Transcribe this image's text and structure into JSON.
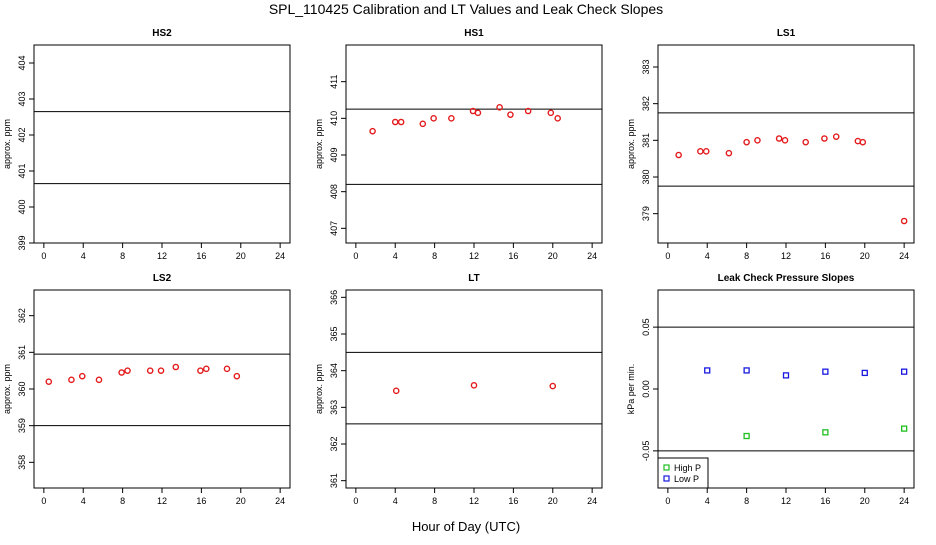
{
  "title": "SPL_110425  Calibration and LT Values and Leak Check Slopes",
  "xlabel": "Hour of Day (UTC)",
  "colors": {
    "red": "#e41a1c",
    "green": "#1fbf1f",
    "blue": "#1818e0",
    "line": "#000000"
  },
  "chart_data": [
    {
      "type": "scatter",
      "title": "HS2",
      "ylabel": "approx. ppm",
      "xlim": [
        -1,
        25
      ],
      "ylim": [
        399.0,
        404.5
      ],
      "xticks": [
        0,
        4,
        8,
        12,
        16,
        20,
        24
      ],
      "yticks": [
        399,
        400,
        401,
        402,
        403,
        404
      ],
      "hlines": [
        400.65,
        402.65
      ],
      "series": [
        {
          "color": "#e41a1c",
          "marker": "circle",
          "x": [],
          "y": []
        }
      ]
    },
    {
      "type": "scatter",
      "title": "HS1",
      "ylabel": "approx. ppm",
      "xlim": [
        -1,
        25
      ],
      "ylim": [
        406.6,
        412.0
      ],
      "xticks": [
        0,
        4,
        8,
        12,
        16,
        20,
        24
      ],
      "yticks": [
        407,
        408,
        409,
        410,
        411
      ],
      "hlines": [
        408.2,
        410.25
      ],
      "series": [
        {
          "color": "#e41a1c",
          "marker": "circle",
          "x": [
            1.7,
            4.0,
            4.6,
            6.8,
            7.9,
            9.7,
            11.9,
            12.4,
            14.6,
            15.7,
            17.5,
            19.8,
            20.5
          ],
          "y": [
            409.65,
            409.9,
            409.9,
            409.85,
            410.0,
            410.0,
            410.2,
            410.15,
            410.3,
            410.1,
            410.2,
            410.15,
            410.0
          ]
        }
      ]
    },
    {
      "type": "scatter",
      "title": "LS1",
      "ylabel": "approx. ppm",
      "xlim": [
        -1,
        25
      ],
      "ylim": [
        378.2,
        383.6
      ],
      "xticks": [
        0,
        4,
        8,
        12,
        16,
        20,
        24
      ],
      "yticks": [
        379,
        380,
        381,
        382,
        383
      ],
      "hlines": [
        379.75,
        381.75
      ],
      "series": [
        {
          "color": "#e41a1c",
          "marker": "circle",
          "x": [
            1.1,
            3.3,
            3.9,
            6.2,
            8.0,
            9.1,
            11.3,
            11.9,
            14.0,
            15.9,
            17.1,
            19.3,
            19.8,
            24.0
          ],
          "y": [
            380.6,
            380.7,
            380.7,
            380.65,
            380.95,
            381.0,
            381.05,
            381.0,
            380.95,
            381.05,
            381.1,
            380.98,
            380.95,
            378.8
          ]
        }
      ]
    },
    {
      "type": "scatter",
      "title": "LS2",
      "ylabel": "approx. ppm",
      "xlim": [
        -1,
        25
      ],
      "ylim": [
        357.3,
        362.7
      ],
      "xticks": [
        0,
        4,
        8,
        12,
        16,
        20,
        24
      ],
      "yticks": [
        358,
        359,
        360,
        361,
        362
      ],
      "hlines": [
        359.0,
        360.95
      ],
      "series": [
        {
          "color": "#e41a1c",
          "marker": "circle",
          "x": [
            0.5,
            2.8,
            3.9,
            5.6,
            7.9,
            8.5,
            10.8,
            11.9,
            13.4,
            15.9,
            16.5,
            18.6,
            19.6
          ],
          "y": [
            360.2,
            360.25,
            360.35,
            360.25,
            360.45,
            360.5,
            360.5,
            360.5,
            360.6,
            360.5,
            360.55,
            360.55,
            360.35
          ]
        }
      ]
    },
    {
      "type": "scatter",
      "title": "LT",
      "ylabel": "approx. ppm",
      "xlim": [
        -1,
        25
      ],
      "ylim": [
        360.8,
        366.2
      ],
      "xticks": [
        0,
        4,
        8,
        12,
        16,
        20,
        24
      ],
      "yticks": [
        361,
        362,
        363,
        364,
        365,
        366
      ],
      "hlines": [
        362.55,
        364.5
      ],
      "series": [
        {
          "color": "#e41a1c",
          "marker": "circle",
          "x": [
            4.1,
            12.0,
            20.0
          ],
          "y": [
            363.45,
            363.6,
            363.58
          ]
        }
      ]
    },
    {
      "type": "scatter",
      "title": "Leak Check Pressure Slopes",
      "ylabel": "kPa per min.",
      "xlim": [
        -1,
        25
      ],
      "ylim": [
        -0.08,
        0.08
      ],
      "xticks": [
        0,
        4,
        8,
        12,
        16,
        20,
        24
      ],
      "yticks": [
        -0.05,
        0.0,
        0.05
      ],
      "yticklabels": [
        "-0.05",
        "0.00",
        "0.05"
      ],
      "hlines": [
        -0.05,
        0.05
      ],
      "legend": {
        "position": "bottom-left",
        "entries": [
          "High P",
          "Low P"
        ]
      },
      "series": [
        {
          "name": "High P",
          "color": "#1fbf1f",
          "marker": "square",
          "x": [
            8.0,
            16.0,
            24.0
          ],
          "y": [
            -0.038,
            -0.035,
            -0.032
          ]
        },
        {
          "name": "Low P",
          "color": "#1818e0",
          "marker": "square",
          "x": [
            4.0,
            8.0,
            12.0,
            16.0,
            20.0,
            24.0
          ],
          "y": [
            0.015,
            0.015,
            0.011,
            0.014,
            0.013,
            0.014
          ]
        }
      ]
    }
  ]
}
